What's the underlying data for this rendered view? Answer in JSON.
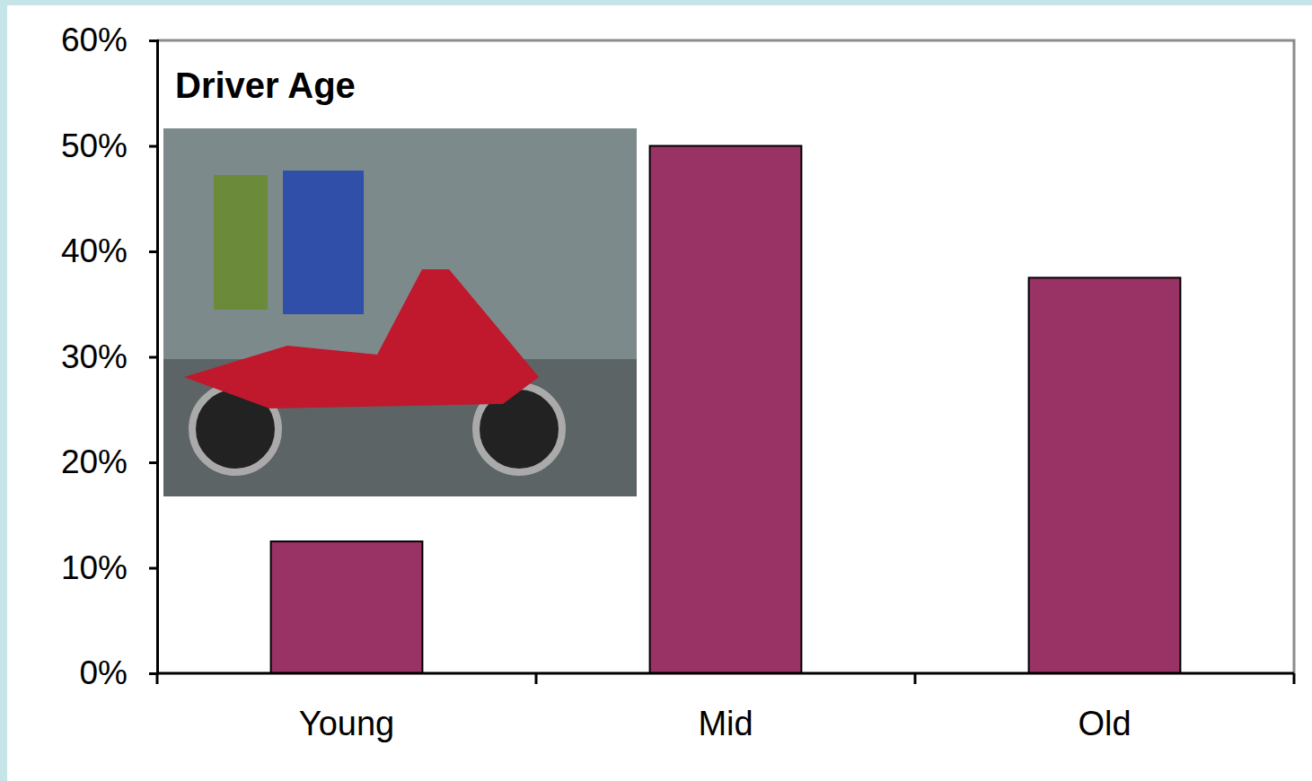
{
  "chart_data": {
    "type": "bar",
    "title": "Driver Age",
    "categories": [
      "Young",
      "Mid",
      "Old"
    ],
    "values": [
      12.5,
      50,
      37.5
    ],
    "color": "#993366",
    "ylim": [
      0,
      60
    ],
    "yticks": [
      {
        "value": 0,
        "label": "0%"
      },
      {
        "value": 10,
        "label": "10%"
      },
      {
        "value": 20,
        "label": "20%"
      },
      {
        "value": 30,
        "label": "30%"
      },
      {
        "value": 40,
        "label": "40%"
      },
      {
        "value": 50,
        "label": "50%"
      },
      {
        "value": 60,
        "label": "60%"
      }
    ],
    "grid": false
  }
}
